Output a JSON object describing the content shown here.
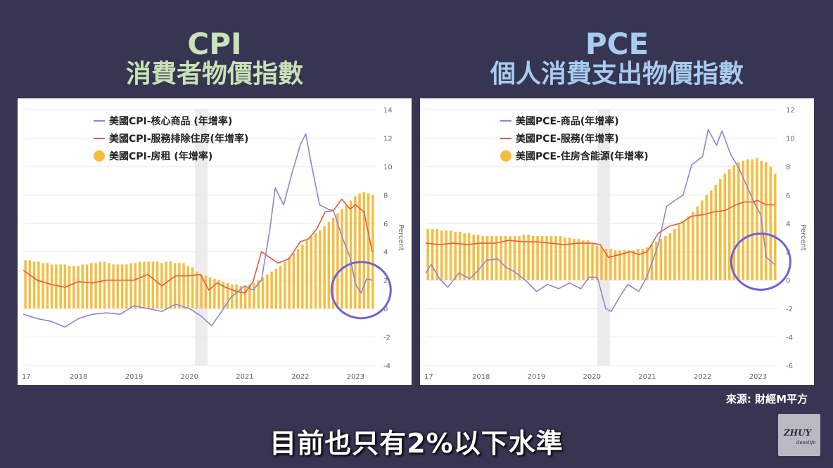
{
  "titles": {
    "cpi_line1": "CPI",
    "cpi_line2": "消費者物價指數",
    "pce_line1": "PCE",
    "pce_line2": "個人消費支出物價指數"
  },
  "source": "來源: 財經M平方",
  "subtitle": "目前也只有2%以下水準",
  "logo": {
    "line1": "ZHUY",
    "line2": "deeslife"
  },
  "colors": {
    "bar": "#f5bd3f",
    "goods": "#8f84d6",
    "services": "#e65b3c",
    "circle": "#6f62d8",
    "recession": "#ececec"
  },
  "chart_data": [
    {
      "type": "bar+line",
      "ylabel": "Percent",
      "ylim": [
        -4,
        14
      ],
      "yticks": [
        -4,
        -2,
        0,
        2,
        4,
        6,
        8,
        10,
        12,
        14
      ],
      "xticks": [
        "17",
        "2018",
        "2019",
        "2020",
        "2021",
        "2022",
        "2023"
      ],
      "xrange": [
        2017.0,
        2023.35
      ],
      "recession": [
        2020.1,
        2020.33
      ],
      "highlight_circle": {
        "x": 2023.1,
        "y": 1.3
      },
      "series": [
        {
          "name": "美國CPI-核心商品 (年增率)",
          "kind": "line",
          "x": [
            2017.0,
            2017.25,
            2017.5,
            2017.75,
            2018.0,
            2018.25,
            2018.5,
            2018.75,
            2019.0,
            2019.25,
            2019.5,
            2019.75,
            2020.0,
            2020.2,
            2020.4,
            2020.55,
            2020.75,
            2021.0,
            2021.15,
            2021.3,
            2021.45,
            2021.55,
            2021.7,
            2021.85,
            2022.0,
            2022.1,
            2022.2,
            2022.35,
            2022.5,
            2022.6,
            2022.75,
            2022.9,
            2023.0,
            2023.1,
            2023.2,
            2023.3
          ],
          "values": [
            -0.4,
            -0.7,
            -0.9,
            -1.3,
            -0.7,
            -0.4,
            -0.3,
            -0.4,
            0.2,
            0.0,
            -0.2,
            0.3,
            0.0,
            -0.5,
            -1.2,
            -0.4,
            0.8,
            1.6,
            1.3,
            2.0,
            5.5,
            8.5,
            7.3,
            9.5,
            11.5,
            12.3,
            10.2,
            7.3,
            7.0,
            6.9,
            5.1,
            3.6,
            1.7,
            1.1,
            2.1,
            2.0
          ]
        },
        {
          "name": "美國CPI-服務排除住房(年增率)",
          "kind": "line",
          "x": [
            2017.0,
            2017.25,
            2017.5,
            2017.75,
            2018.0,
            2018.25,
            2018.5,
            2018.75,
            2019.0,
            2019.25,
            2019.5,
            2019.75,
            2020.0,
            2020.2,
            2020.35,
            2020.5,
            2020.65,
            2020.85,
            2021.0,
            2021.15,
            2021.3,
            2021.45,
            2021.6,
            2021.8,
            2022.0,
            2022.15,
            2022.3,
            2022.45,
            2022.6,
            2022.75,
            2022.9,
            2023.0,
            2023.15,
            2023.3
          ],
          "values": [
            2.7,
            2.0,
            1.7,
            1.5,
            1.9,
            1.8,
            2.0,
            2.0,
            2.0,
            2.4,
            1.6,
            2.3,
            2.3,
            2.4,
            1.3,
            1.8,
            1.5,
            1.2,
            1.1,
            1.9,
            4.0,
            3.6,
            3.2,
            3.5,
            4.7,
            4.9,
            5.6,
            6.8,
            6.9,
            7.7,
            7.0,
            7.3,
            6.8,
            4.0
          ]
        },
        {
          "name": "美國CPI-房租 (年增率)",
          "kind": "bar",
          "x_start": 2017.0,
          "x_end": 2023.35,
          "values": [
            3.4,
            3.4,
            3.3,
            3.3,
            3.2,
            3.2,
            3.1,
            3.1,
            3.1,
            3.1,
            3.0,
            3.0,
            3.0,
            3.1,
            3.1,
            3.2,
            3.2,
            3.3,
            3.3,
            3.2,
            3.1,
            3.1,
            3.1,
            3.1,
            3.2,
            3.2,
            3.3,
            3.3,
            3.3,
            3.3,
            3.3,
            3.2,
            3.3,
            3.3,
            3.2,
            3.2,
            3.2,
            3.0,
            2.9,
            2.6,
            2.4,
            2.3,
            2.2,
            2.1,
            2.0,
            1.9,
            1.8,
            1.7,
            1.7,
            1.6,
            1.6,
            1.7,
            1.8,
            2.0,
            2.2,
            2.4,
            2.6,
            2.8,
            3.0,
            3.3,
            3.6,
            3.9,
            4.2,
            4.5,
            4.8,
            5.1,
            5.3,
            5.5,
            5.8,
            6.1,
            6.4,
            6.7,
            7.0,
            7.3,
            7.6,
            7.9,
            8.1,
            8.2,
            8.1,
            8.0
          ]
        }
      ]
    },
    {
      "type": "bar+line",
      "ylabel": "Percent",
      "ylim": [
        -6,
        12
      ],
      "yticks": [
        -6,
        -4,
        -2,
        0,
        2,
        4,
        6,
        8,
        10,
        12
      ],
      "xticks": [
        "17",
        "2018",
        "2019",
        "2020",
        "2021",
        "2022",
        "2023"
      ],
      "xrange": [
        2017.0,
        2023.35
      ],
      "recession": [
        2020.1,
        2020.33
      ],
      "highlight_circle": {
        "x": 2023.05,
        "y": 1.3
      },
      "series": [
        {
          "name": "美國PCE-商品(年增率)",
          "kind": "line",
          "x": [
            2017.0,
            2017.1,
            2017.25,
            2017.4,
            2017.6,
            2017.8,
            2017.95,
            2018.1,
            2018.3,
            2018.45,
            2018.6,
            2018.8,
            2019.0,
            2019.2,
            2019.4,
            2019.6,
            2019.8,
            2019.95,
            2020.1,
            2020.25,
            2020.35,
            2020.5,
            2020.65,
            2020.85,
            2021.0,
            2021.2,
            2021.35,
            2021.5,
            2021.65,
            2021.8,
            2022.0,
            2022.1,
            2022.25,
            2022.35,
            2022.5,
            2022.65,
            2022.8,
            2022.95,
            2023.05,
            2023.15,
            2023.3
          ],
          "values": [
            0.5,
            1.1,
            0.1,
            -0.5,
            0.5,
            0.1,
            0.7,
            1.4,
            1.5,
            0.9,
            0.6,
            0.0,
            -0.8,
            -0.3,
            -0.6,
            -0.2,
            -0.6,
            0.2,
            0.2,
            -2.0,
            -2.2,
            -1.2,
            -0.3,
            -0.8,
            0.3,
            2.5,
            5.2,
            5.6,
            6.0,
            8.1,
            8.7,
            10.6,
            9.5,
            10.5,
            8.9,
            7.9,
            6.6,
            5.3,
            4.6,
            1.6,
            1.1
          ]
        },
        {
          "name": "美國PCE-服務(年增率)",
          "kind": "line",
          "x": [
            2017.0,
            2017.25,
            2017.5,
            2017.75,
            2018.0,
            2018.25,
            2018.5,
            2018.75,
            2019.0,
            2019.25,
            2019.5,
            2019.75,
            2020.0,
            2020.15,
            2020.3,
            2020.5,
            2020.7,
            2020.85,
            2021.0,
            2021.2,
            2021.4,
            2021.6,
            2021.8,
            2022.0,
            2022.2,
            2022.4,
            2022.6,
            2022.75,
            2022.9,
            2023.0,
            2023.15,
            2023.3
          ],
          "values": [
            2.6,
            2.5,
            2.6,
            2.5,
            2.6,
            2.6,
            2.8,
            2.7,
            2.7,
            2.6,
            2.5,
            2.6,
            2.6,
            2.5,
            1.6,
            1.8,
            2.0,
            1.8,
            2.0,
            3.3,
            3.8,
            4.0,
            4.5,
            4.6,
            4.8,
            4.9,
            5.3,
            5.5,
            5.5,
            5.6,
            5.3,
            5.3
          ]
        },
        {
          "name": "美國PCE-住房含能源(年增率)",
          "kind": "bar",
          "x_start": 2017.0,
          "x_end": 2023.35,
          "values": [
            3.6,
            3.6,
            3.6,
            3.5,
            3.5,
            3.5,
            3.4,
            3.4,
            3.3,
            3.3,
            3.2,
            3.2,
            3.1,
            3.1,
            3.1,
            3.1,
            3.1,
            3.1,
            3.1,
            3.1,
            3.1,
            3.2,
            3.2,
            3.1,
            3.1,
            3.1,
            3.1,
            3.1,
            3.1,
            3.1,
            3.0,
            3.0,
            2.9,
            2.9,
            2.8,
            2.8,
            2.6,
            2.4,
            2.3,
            2.2,
            2.2,
            2.1,
            2.1,
            2.1,
            2.1,
            2.1,
            2.2,
            2.2,
            2.3,
            2.5,
            2.7,
            2.9,
            3.1,
            3.3,
            3.6,
            3.9,
            4.2,
            4.5,
            4.8,
            5.2,
            5.6,
            6.0,
            6.3,
            6.7,
            7.1,
            7.5,
            7.8,
            8.1,
            8.3,
            8.4,
            8.5,
            8.5,
            8.6,
            8.4,
            8.3,
            8.0,
            7.5
          ]
        }
      ]
    }
  ]
}
